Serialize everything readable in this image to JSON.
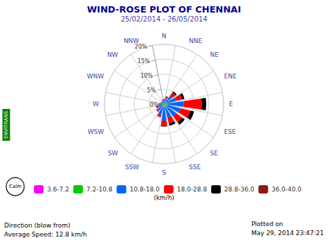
{
  "chart_data": {
    "type": "polar_bar",
    "title": "WIND-ROSE PLOT OF CHENNAI",
    "subtitle": "25/02/2014 - 26/05/2014",
    "categories": [
      "N",
      "NNE",
      "NE",
      "ENE",
      "E",
      "ESE",
      "SE",
      "SSE",
      "S",
      "SSW",
      "SW",
      "WSW",
      "W",
      "WNW",
      "NW",
      "NNW"
    ],
    "series": [
      {
        "name": "3.6-7.2",
        "color": "#ff00ff",
        "values": [
          0.3,
          0.2,
          0.3,
          0.3,
          0.4,
          0.4,
          0.4,
          0.4,
          0.3,
          0.3,
          0.3,
          0.3,
          0.3,
          0.2,
          0.2,
          0.2
        ]
      },
      {
        "name": "7.2-10.8",
        "color": "#00cc00",
        "values": [
          0.3,
          0.3,
          0.5,
          0.5,
          0.8,
          0.8,
          0.8,
          0.8,
          0.8,
          0.5,
          0.5,
          0.5,
          0.3,
          0.3,
          0.2,
          0.2
        ]
      },
      {
        "name": "10.8-18.0",
        "color": "#0066ff",
        "values": [
          1.2,
          1.5,
          2.5,
          3.5,
          5.5,
          4.5,
          4.0,
          3.5,
          4.5,
          3.0,
          2.0,
          1.5,
          1.0,
          0.5,
          0.5,
          0.8
        ]
      },
      {
        "name": "18.0-28.8",
        "color": "#ff0000",
        "values": [
          0.0,
          0.5,
          1.5,
          2.0,
          6.0,
          3.5,
          2.5,
          2.0,
          1.5,
          0.8,
          0.5,
          0.5,
          0.3,
          0.2,
          0.2,
          0.3
        ]
      },
      {
        "name": "28.8-36.0",
        "color": "#000000",
        "values": [
          0.0,
          0.2,
          0.5,
          0.8,
          1.5,
          1.2,
          1.0,
          0.8,
          0.3,
          0.0,
          0.0,
          0.0,
          0.0,
          0.0,
          0.0,
          0.0
        ]
      },
      {
        "name": "36.0-40.0",
        "color": "#8b1a1a",
        "values": [
          0.0,
          0.0,
          0.0,
          0.0,
          0.0,
          0.0,
          0.0,
          0.0,
          0.2,
          0.0,
          0.0,
          0.0,
          0.0,
          0.0,
          0.0,
          0.0
        ]
      }
    ],
    "stacked": true,
    "ylim": [
      0,
      20
    ],
    "yticks": [
      {
        "value": 0,
        "label": "0%"
      },
      {
        "value": 5,
        "label": "5%"
      },
      {
        "value": 10,
        "label": "10%"
      },
      {
        "value": 15,
        "label": "15%"
      },
      {
        "value": 20,
        "label": "20%"
      }
    ],
    "grid": true,
    "legend": "bottom",
    "annotations": [
      "Calm",
      "(km/h)",
      "Direction (blow from)",
      "Average Speed: 12.8 km/h",
      "Plotted on\nMay 29, 2014 23:47:21",
      "ENVITRANS"
    ]
  }
}
